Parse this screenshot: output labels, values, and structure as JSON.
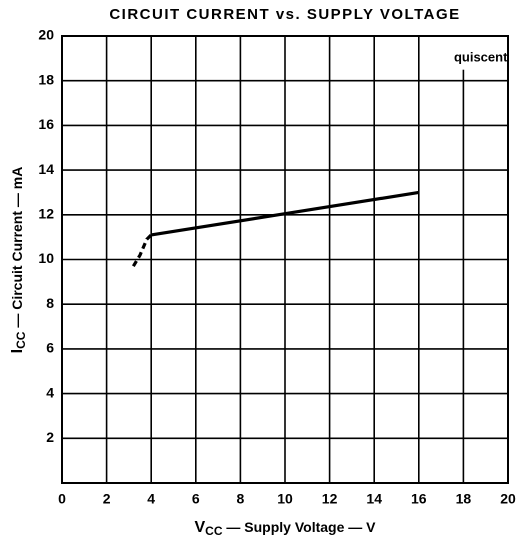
{
  "chart_data": {
    "type": "line",
    "title": "CIRCUIT CURRENT vs. SUPPLY VOLTAGE",
    "xlabel": {
      "symbol": "V",
      "subscript": "CC",
      "text": " — Supply Voltage — V"
    },
    "ylabel": {
      "symbol": "I",
      "subscript": "CC",
      "text": " — Circuit Current — mA"
    },
    "annotation": "quiscent",
    "xlim": [
      0,
      20
    ],
    "xticks": [
      0,
      2,
      4,
      6,
      8,
      10,
      12,
      14,
      16,
      18,
      20
    ],
    "ylim": [
      0,
      20
    ],
    "yticks": [
      2,
      4,
      6,
      8,
      10,
      12,
      14,
      16,
      18,
      20
    ],
    "grid": true,
    "series": [
      {
        "color": "#000000",
        "dashed": true,
        "x": [
          3.2,
          3.5,
          3.8,
          4.0
        ],
        "values": [
          9.7,
          10.2,
          10.9,
          11.1
        ]
      },
      {
        "color": "#000000",
        "dashed": false,
        "x": [
          4.0,
          10.0,
          16.0
        ],
        "values": [
          11.1,
          12.05,
          13.0
        ]
      }
    ]
  }
}
